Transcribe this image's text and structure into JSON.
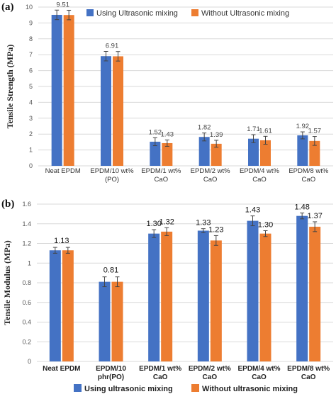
{
  "chart_data": [
    {
      "panel_label": "(a)",
      "type": "bar",
      "title": "",
      "xlabel": "",
      "ylabel": "Tensile Strength (MPa)",
      "ylim": [
        0,
        10
      ],
      "yticks": [
        0,
        1,
        2,
        3,
        4,
        5,
        6,
        7,
        8,
        9,
        10
      ],
      "tick_labels": [
        "0",
        "1",
        "2",
        "3",
        "4",
        "5",
        "6",
        "7",
        "8",
        "9",
        "10"
      ],
      "grid": true,
      "legend_position": "top",
      "categories": [
        [
          "Neat EPDM"
        ],
        [
          "EPDM/10 wt%",
          "(PO)"
        ],
        [
          "EPDM/1 wt%",
          "CaO"
        ],
        [
          "EPDM/2 wt%",
          "CaO"
        ],
        [
          "EPDM/4 wt%",
          "CaO"
        ],
        [
          "EPDM/8 wt%",
          "CaO"
        ]
      ],
      "series": [
        {
          "name": "Using Ultrasonic mixing",
          "color": "#4472c4",
          "values": [
            9.51,
            6.91,
            1.52,
            1.82,
            1.71,
            1.92
          ],
          "labels": [
            "9.51",
            "6.91",
            "1.52",
            "1.82",
            "1.71",
            "1.92"
          ],
          "errors": [
            0.3,
            0.3,
            0.25,
            0.25,
            0.25,
            0.22
          ]
        },
        {
          "name": "Without Ultrasonic mixing",
          "color": "#ed7d31",
          "values": [
            9.5,
            6.9,
            1.43,
            1.39,
            1.61,
            1.57
          ],
          "labels": [
            "",
            "",
            "1.43",
            "1.39",
            "1.61",
            "1.57"
          ],
          "errors": [
            0.3,
            0.3,
            0.2,
            0.22,
            0.25,
            0.28
          ]
        }
      ]
    },
    {
      "panel_label": "(b)",
      "type": "bar",
      "title": "",
      "xlabel": "",
      "ylabel": "Tensile Modulus (MPa)",
      "ylim": [
        0,
        1.6
      ],
      "yticks": [
        0,
        0.2,
        0.4,
        0.6,
        0.8,
        1.0,
        1.2,
        1.4,
        1.6
      ],
      "tick_labels": [
        "0",
        "0.2",
        "0.4",
        "0.6",
        "0.8",
        "1",
        "1.2",
        "1.4",
        "1.6"
      ],
      "grid": true,
      "legend_position": "bottom",
      "categories": [
        [
          "Neat EPDM"
        ],
        [
          "EPDM/10",
          "phr(PO)"
        ],
        [
          "EPDM/1 wt%",
          "CaO"
        ],
        [
          "EPDM/2 wt%",
          "CaO"
        ],
        [
          "EPDM/4 wt%",
          "CaO"
        ],
        [
          "EPDM/8 wt%",
          "CaO"
        ]
      ],
      "series": [
        {
          "name": "Using ultrasonic mixing",
          "color": "#4472c4",
          "values": [
            1.13,
            0.81,
            1.3,
            1.33,
            1.43,
            1.48
          ],
          "labels": [
            "",
            "",
            "1.30",
            "1.33",
            "1.43",
            "1.48"
          ],
          "errors": [
            0.03,
            0.05,
            0.04,
            0.02,
            0.05,
            0.03
          ]
        },
        {
          "name": "Without ultrasonic mixing",
          "color": "#ed7d31",
          "values": [
            1.13,
            0.81,
            1.32,
            1.23,
            1.3,
            1.37
          ],
          "labels": [
            "",
            "",
            "1.32",
            "1.23",
            "1.30",
            "1.37"
          ],
          "errors": [
            0.03,
            0.05,
            0.04,
            0.05,
            0.03,
            0.05
          ]
        }
      ],
      "shared_labels": [
        "1.13",
        "0.81",
        "",
        "",
        "",
        ""
      ]
    }
  ]
}
